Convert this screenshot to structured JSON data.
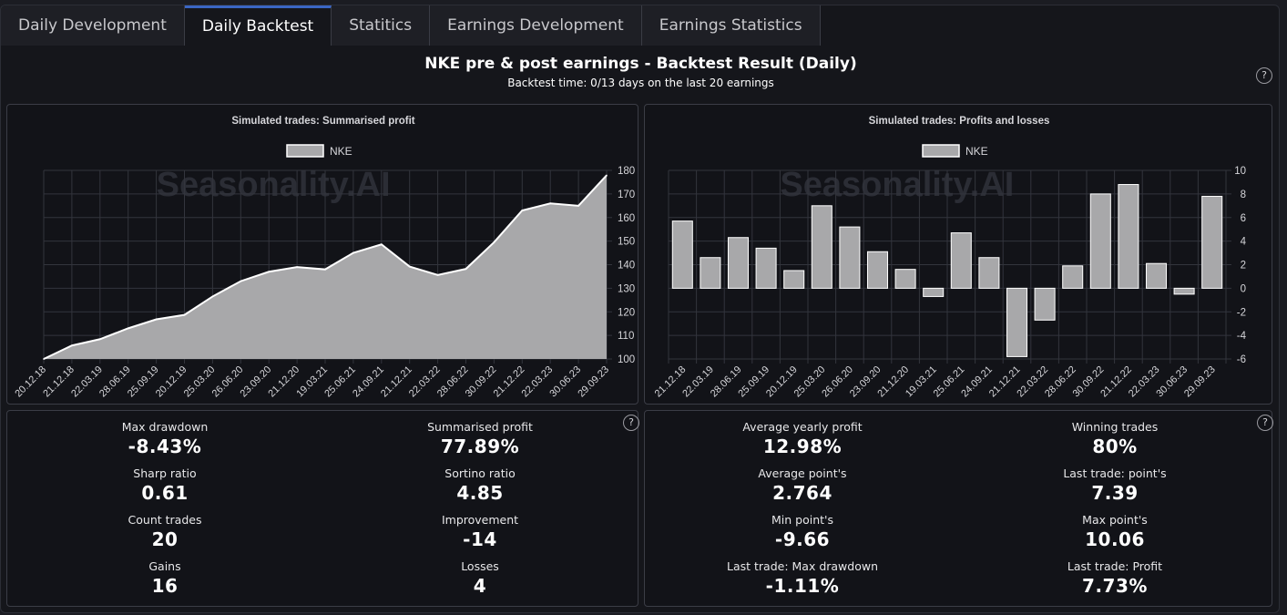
{
  "tabs": [
    {
      "label": "Daily Development",
      "active": false
    },
    {
      "label": "Daily Backtest",
      "active": true
    },
    {
      "label": "Statitics",
      "active": false
    },
    {
      "label": "Earnings Development",
      "active": false
    },
    {
      "label": "Earnings Statistics",
      "active": false
    }
  ],
  "header": {
    "title": "NKE pre & post earnings - Backtest Result (Daily)",
    "subtitle": "Backtest time: 0/13 days on the last 20 earnings",
    "help": "?"
  },
  "watermark": "Seasonality.AI",
  "colors": {
    "series_fill": "#a8a8aa",
    "line": "#ffffff",
    "grid": "#33353d",
    "accent": "#3a66c4"
  },
  "chart_data": [
    {
      "type": "area",
      "title": "Simulated trades: Summarised profit",
      "legend": "NKE",
      "legend_position": "top",
      "y_axis_position": "right",
      "ylim": [
        100,
        180
      ],
      "yticks": [
        100,
        110,
        120,
        130,
        140,
        150,
        160,
        170,
        180
      ],
      "grid": true,
      "x": [
        "20.12.18",
        "21.12.18",
        "22.03.19",
        "28.06.19",
        "25.09.19",
        "20.12.19",
        "25.03.20",
        "26.06.20",
        "23.09.20",
        "21.12.20",
        "19.03.21",
        "25.06.21",
        "24.09.21",
        "21.12.21",
        "22.03.22",
        "28.06.22",
        "30.09.22",
        "21.12.22",
        "22.03.23",
        "30.06.23",
        "29.09.23"
      ],
      "values": [
        100,
        105.7,
        108.4,
        113,
        116.8,
        118.7,
        126.5,
        133,
        137,
        139,
        138,
        145,
        148.6,
        139.2,
        135.6,
        138.2,
        149.5,
        163,
        166,
        165,
        177.9
      ]
    },
    {
      "type": "bar",
      "title": "Simulated trades: Profits and losses",
      "legend": "NKE",
      "legend_position": "top",
      "y_axis_position": "right",
      "ylim": [
        -6,
        10
      ],
      "yticks": [
        -6,
        -4,
        -2,
        0,
        2,
        4,
        6,
        8,
        10
      ],
      "grid": true,
      "categories": [
        "21.12.18",
        "22.03.19",
        "28.06.19",
        "25.09.19",
        "20.12.19",
        "25.03.20",
        "26.06.20",
        "23.09.20",
        "21.12.20",
        "19.03.21",
        "25.06.21",
        "24.09.21",
        "21.12.21",
        "22.03.22",
        "28.06.22",
        "30.09.22",
        "21.12.22",
        "22.03.23",
        "30.06.23",
        "29.09.23"
      ],
      "values": [
        5.7,
        2.6,
        4.3,
        3.4,
        1.5,
        7.0,
        5.2,
        3.1,
        1.6,
        -0.7,
        4.7,
        2.6,
        -5.8,
        -2.7,
        1.9,
        8.0,
        8.8,
        2.1,
        -0.5,
        7.8
      ]
    }
  ],
  "stats_left": [
    {
      "label": "Max drawdown",
      "value": "-8.43%"
    },
    {
      "label": "Summarised profit",
      "value": "77.89%"
    },
    {
      "label": "Sharp ratio",
      "value": "0.61"
    },
    {
      "label": "Sortino ratio",
      "value": "4.85"
    },
    {
      "label": "Count trades",
      "value": "20"
    },
    {
      "label": "Improvement",
      "value": "-14"
    },
    {
      "label": "Gains",
      "value": "16"
    },
    {
      "label": "Losses",
      "value": "4"
    }
  ],
  "stats_right": [
    {
      "label": "Average yearly profit",
      "value": "12.98%"
    },
    {
      "label": "Winning trades",
      "value": "80%"
    },
    {
      "label": "Average point's",
      "value": "2.764"
    },
    {
      "label": "Last trade: point's",
      "value": "7.39"
    },
    {
      "label": "Min point's",
      "value": "-9.66"
    },
    {
      "label": "Max point's",
      "value": "10.06"
    },
    {
      "label": "Last trade: Max drawdown",
      "value": "-1.11%"
    },
    {
      "label": "Last trade: Profit",
      "value": "7.73%"
    }
  ]
}
